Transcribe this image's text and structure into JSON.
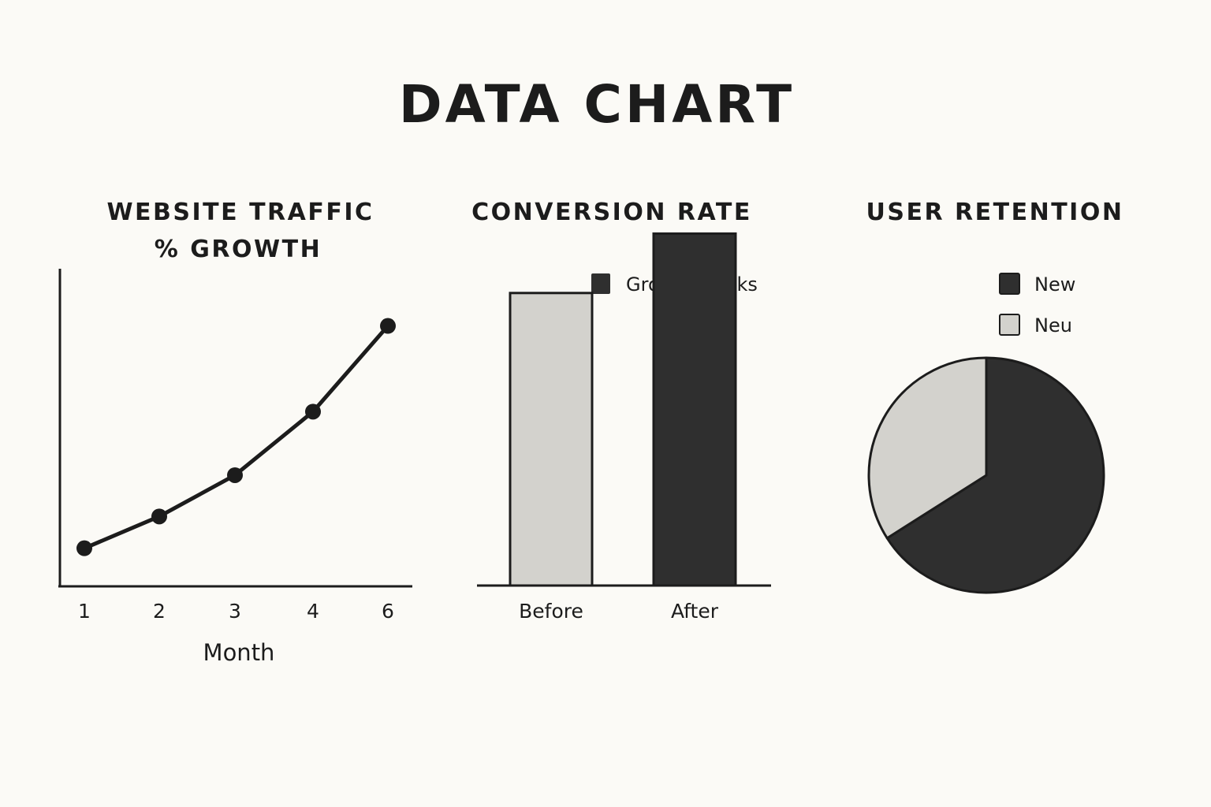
{
  "page": {
    "title": "DATA CHART"
  },
  "colors": {
    "background": "#fbfaf6",
    "ink": "#1c1c1c",
    "dark_fill": "#2f2f2f",
    "light_fill": "#d3d2cd"
  },
  "chart_data": [
    {
      "type": "line",
      "title_lines": [
        "WEBSITE TRAFFIC",
        "% GROWTH"
      ],
      "categories": [
        "1",
        "2",
        "3",
        "4",
        "6"
      ],
      "values": [
        12,
        22,
        35,
        55,
        82
      ],
      "xlabel": "Month",
      "ylabel": "",
      "ylim": [
        0,
        100
      ],
      "grid": false
    },
    {
      "type": "bar",
      "title": "CONVERSION RATE",
      "categories": [
        "Before",
        "After"
      ],
      "values": [
        64,
        77
      ],
      "bar_colors": [
        "light",
        "dark"
      ],
      "legend": [
        {
          "label": "Growth Hacks",
          "color": "dark"
        }
      ],
      "legend_position": "top-right",
      "ylim": [
        0,
        100
      ],
      "grid": false
    },
    {
      "type": "pie",
      "title": "USER RETENTION",
      "slices": [
        {
          "label": "New",
          "value": 66,
          "color": "dark"
        },
        {
          "label": "Neu",
          "value": 34,
          "color": "light"
        }
      ],
      "legend": [
        {
          "label": "New",
          "color": "dark"
        },
        {
          "label": "Neu",
          "color": "light"
        }
      ],
      "legend_position": "top"
    }
  ]
}
